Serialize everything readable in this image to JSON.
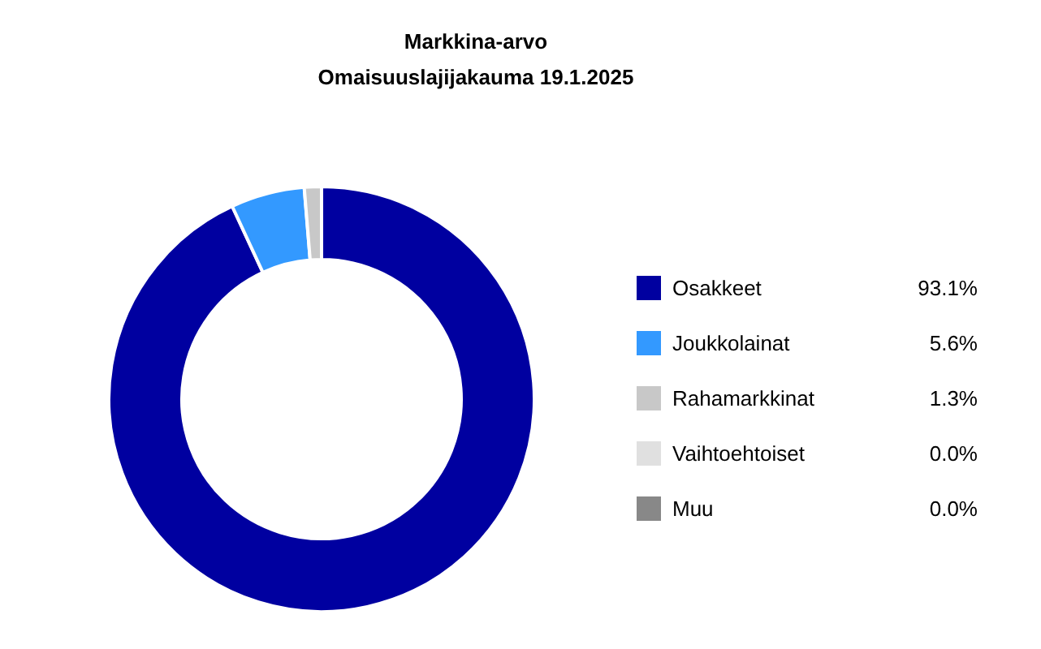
{
  "chart_data": {
    "type": "donut",
    "title": "Markkina-arvo",
    "subtitle": "Omaisuuslajijakauma 19.1.2025",
    "categories": [
      "Osakkeet",
      "Joukkolainat",
      "Rahamarkkinat",
      "Vaihtoehtoiset",
      "Muu"
    ],
    "values": [
      93.1,
      5.6,
      1.3,
      0.0,
      0.0
    ],
    "value_labels": [
      "93.1%",
      "5.6%",
      "1.3%",
      "0.0%",
      "0.0%"
    ],
    "colors": [
      "#0000a0",
      "#3399ff",
      "#c8c8c8",
      "#e0e0e0",
      "#888888"
    ],
    "legend": "right"
  }
}
